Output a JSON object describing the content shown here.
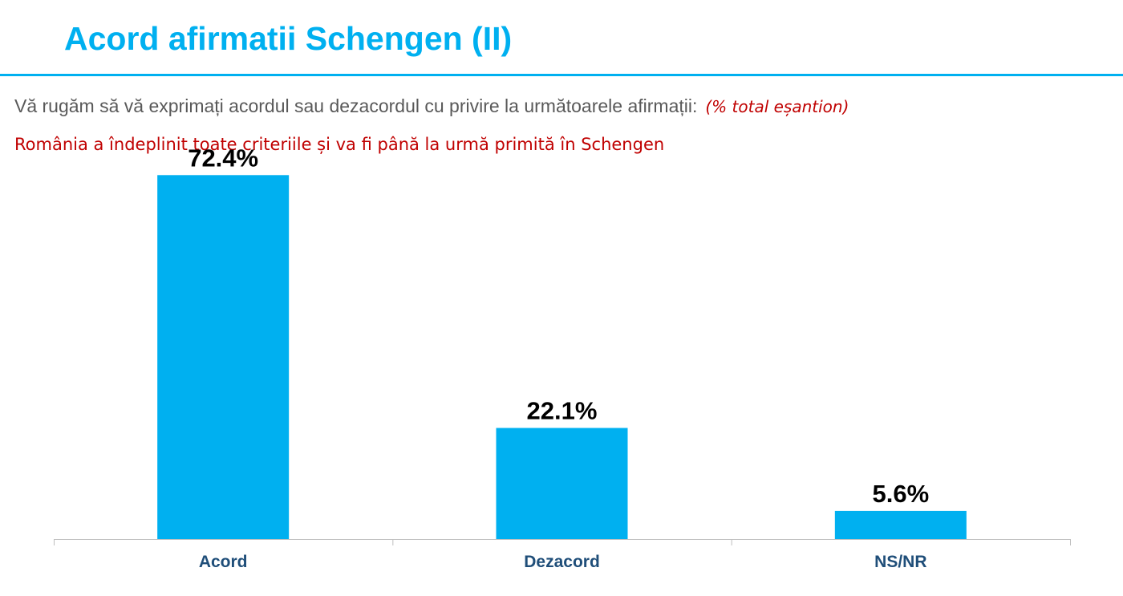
{
  "header": {
    "title": "Acord afirmatii Schengen (II)",
    "question": "Vă rugăm să vă exprimați acordul sau dezacordul cu privire la următoarele afirmații:",
    "note": "(% total eșantion)",
    "statement": "România a îndeplinit toate criteriile și va fi până la urmă primită în Schengen"
  },
  "colors": {
    "accent": "#00b0f0",
    "note": "#c00000",
    "category_label": "#1f4e79"
  },
  "chart_data": {
    "type": "bar",
    "categories": [
      "Acord",
      "Dezacord",
      "NS/NR"
    ],
    "values": [
      72.4,
      22.1,
      5.6
    ],
    "data_labels": [
      "72.4%",
      "22.1%",
      "5.6%"
    ],
    "ylim": [
      0,
      75
    ],
    "grid": false,
    "legend": "none"
  }
}
